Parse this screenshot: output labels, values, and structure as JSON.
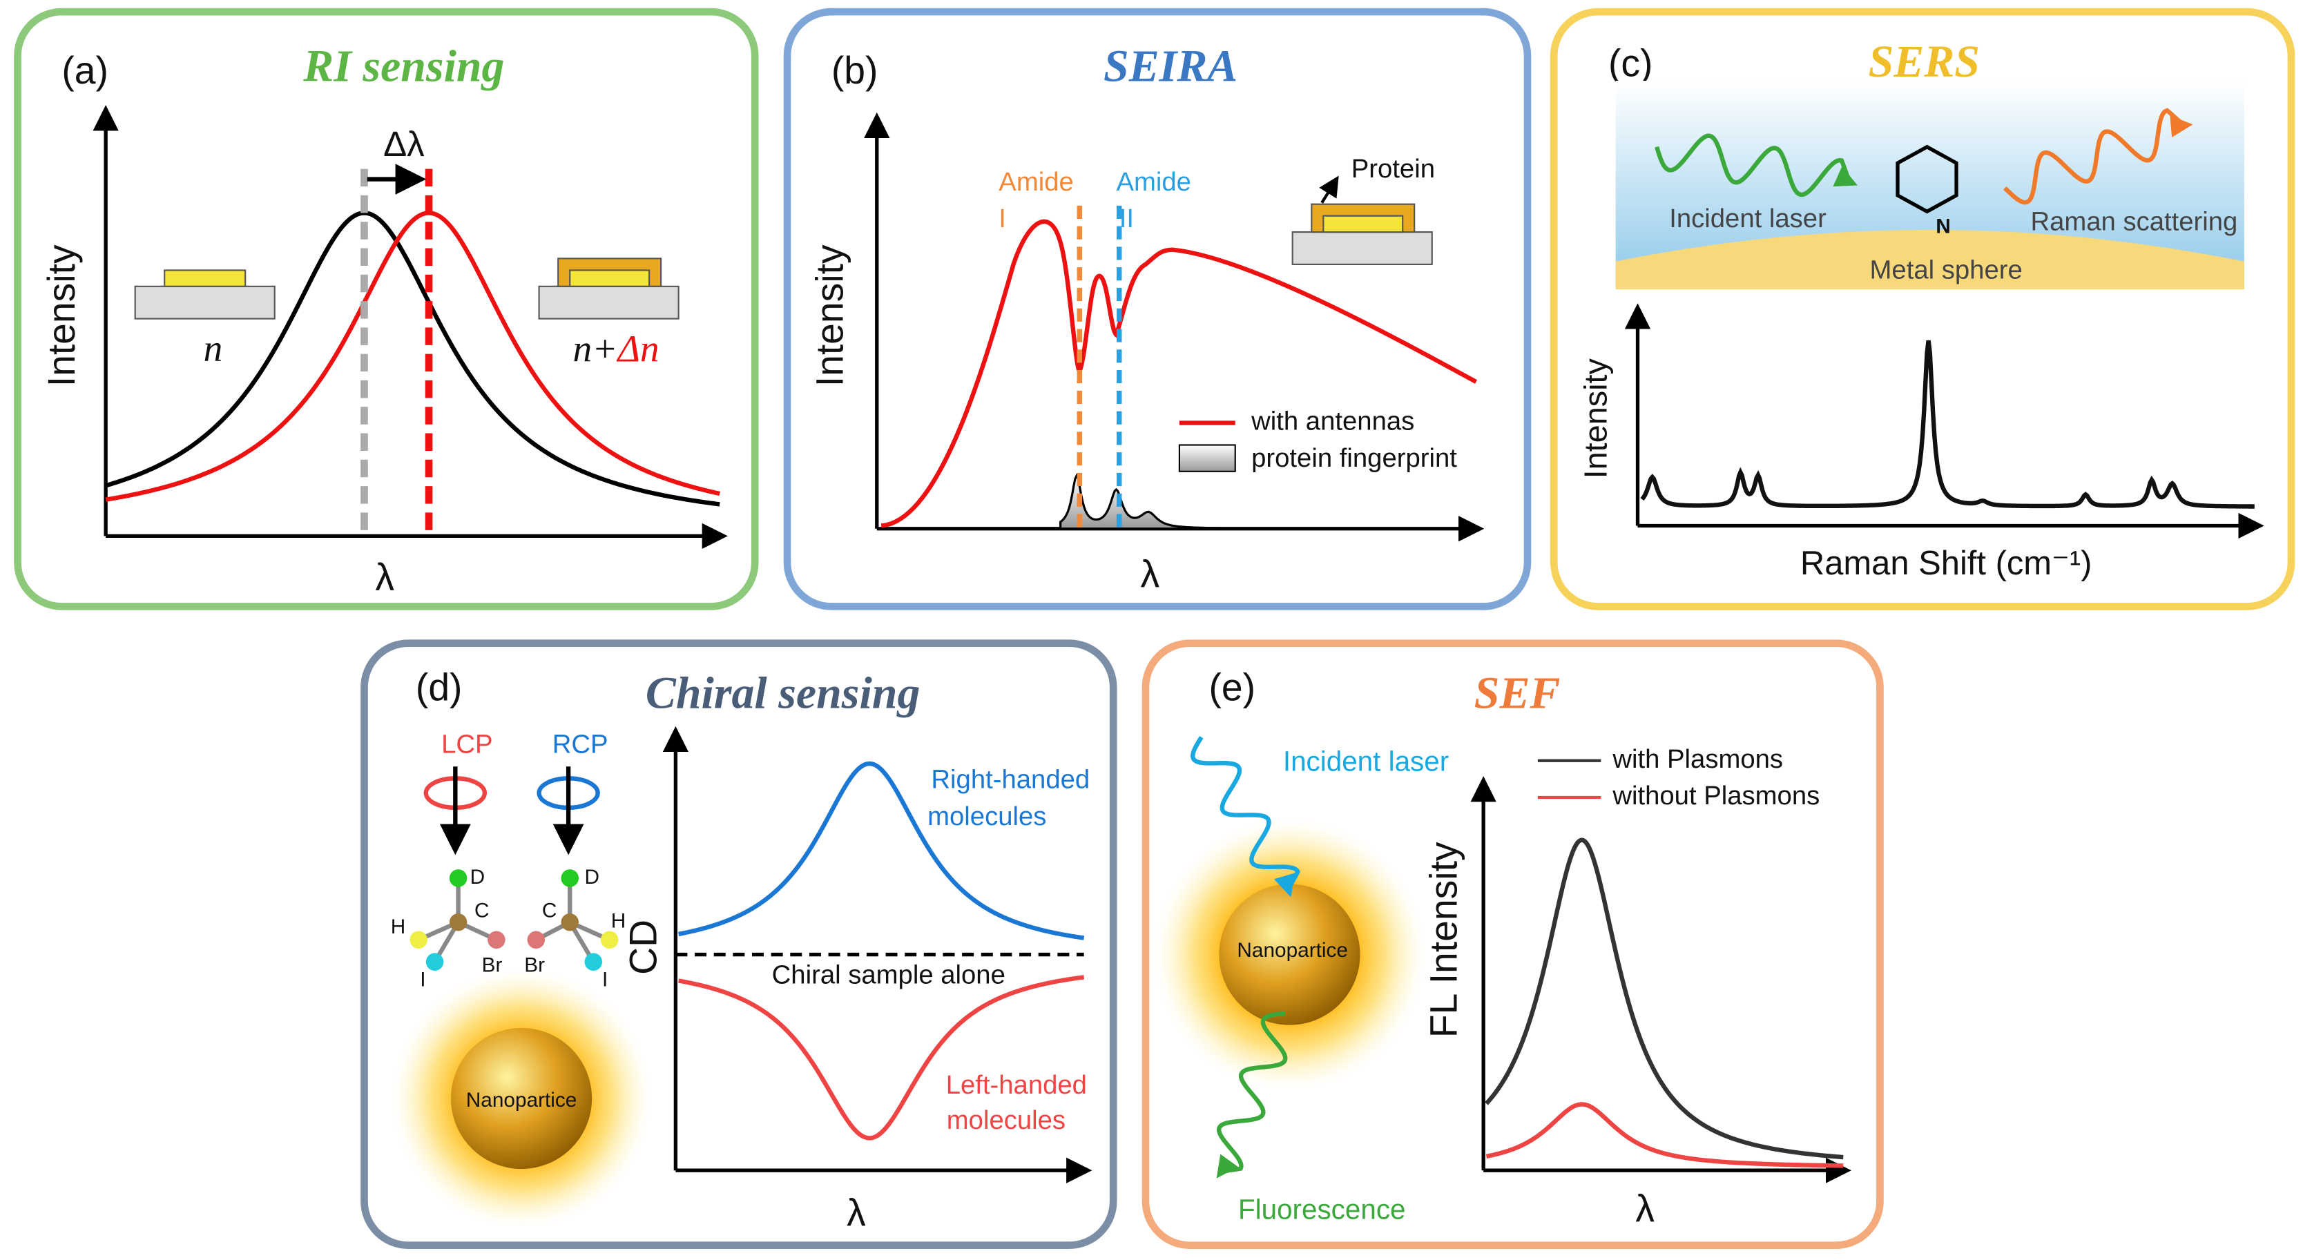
{
  "panels": [
    {
      "label": "(a)",
      "title": "RI sensing",
      "y_axis": "Intensity",
      "x_axis": "λ",
      "shift": "Δλ",
      "before": "n",
      "after": {
        "base": "n+",
        "delta": "Δn"
      }
    },
    {
      "label": "(b)",
      "title": "SEIRA",
      "y_axis": "Intensity",
      "x_axis": "λ",
      "amide_1": [
        "Amide",
        "I"
      ],
      "amide_2": [
        "Amide",
        "II"
      ],
      "icon_label": "Protein",
      "legend": [
        "with antennas",
        "protein fingerprint"
      ]
    },
    {
      "label": "(c)",
      "title": "SERS",
      "incident": "Incident laser",
      "scattered": "Raman scattering",
      "substrate": "Metal sphere",
      "atom": "N",
      "y_axis": "Intensity",
      "x_axis": "Raman Shift (cm⁻¹)"
    },
    {
      "label": "(d)",
      "title": "Chiral sensing",
      "lcp": "LCP",
      "rcp": "RCP",
      "molecule_left": [
        "D",
        "C",
        "H",
        "I",
        "Br"
      ],
      "molecule_right": [
        "D",
        "C",
        "Br",
        "H",
        "I"
      ],
      "particle": "Nanopartice",
      "y_axis": "CD",
      "x_axis": "λ",
      "upper": [
        "Right-handed",
        "molecules"
      ],
      "baseline": "Chiral sample alone",
      "lower": [
        "Left-handed",
        "molecules"
      ]
    },
    {
      "label": "(e)",
      "title": "SEF",
      "incident": "Incident laser",
      "particle": "Nanopartice",
      "emitted": "Fluorescence",
      "y_axis": "FL Intensity",
      "x_axis": "λ",
      "legend": [
        "with Plasmons",
        "without Plasmons"
      ]
    }
  ]
}
